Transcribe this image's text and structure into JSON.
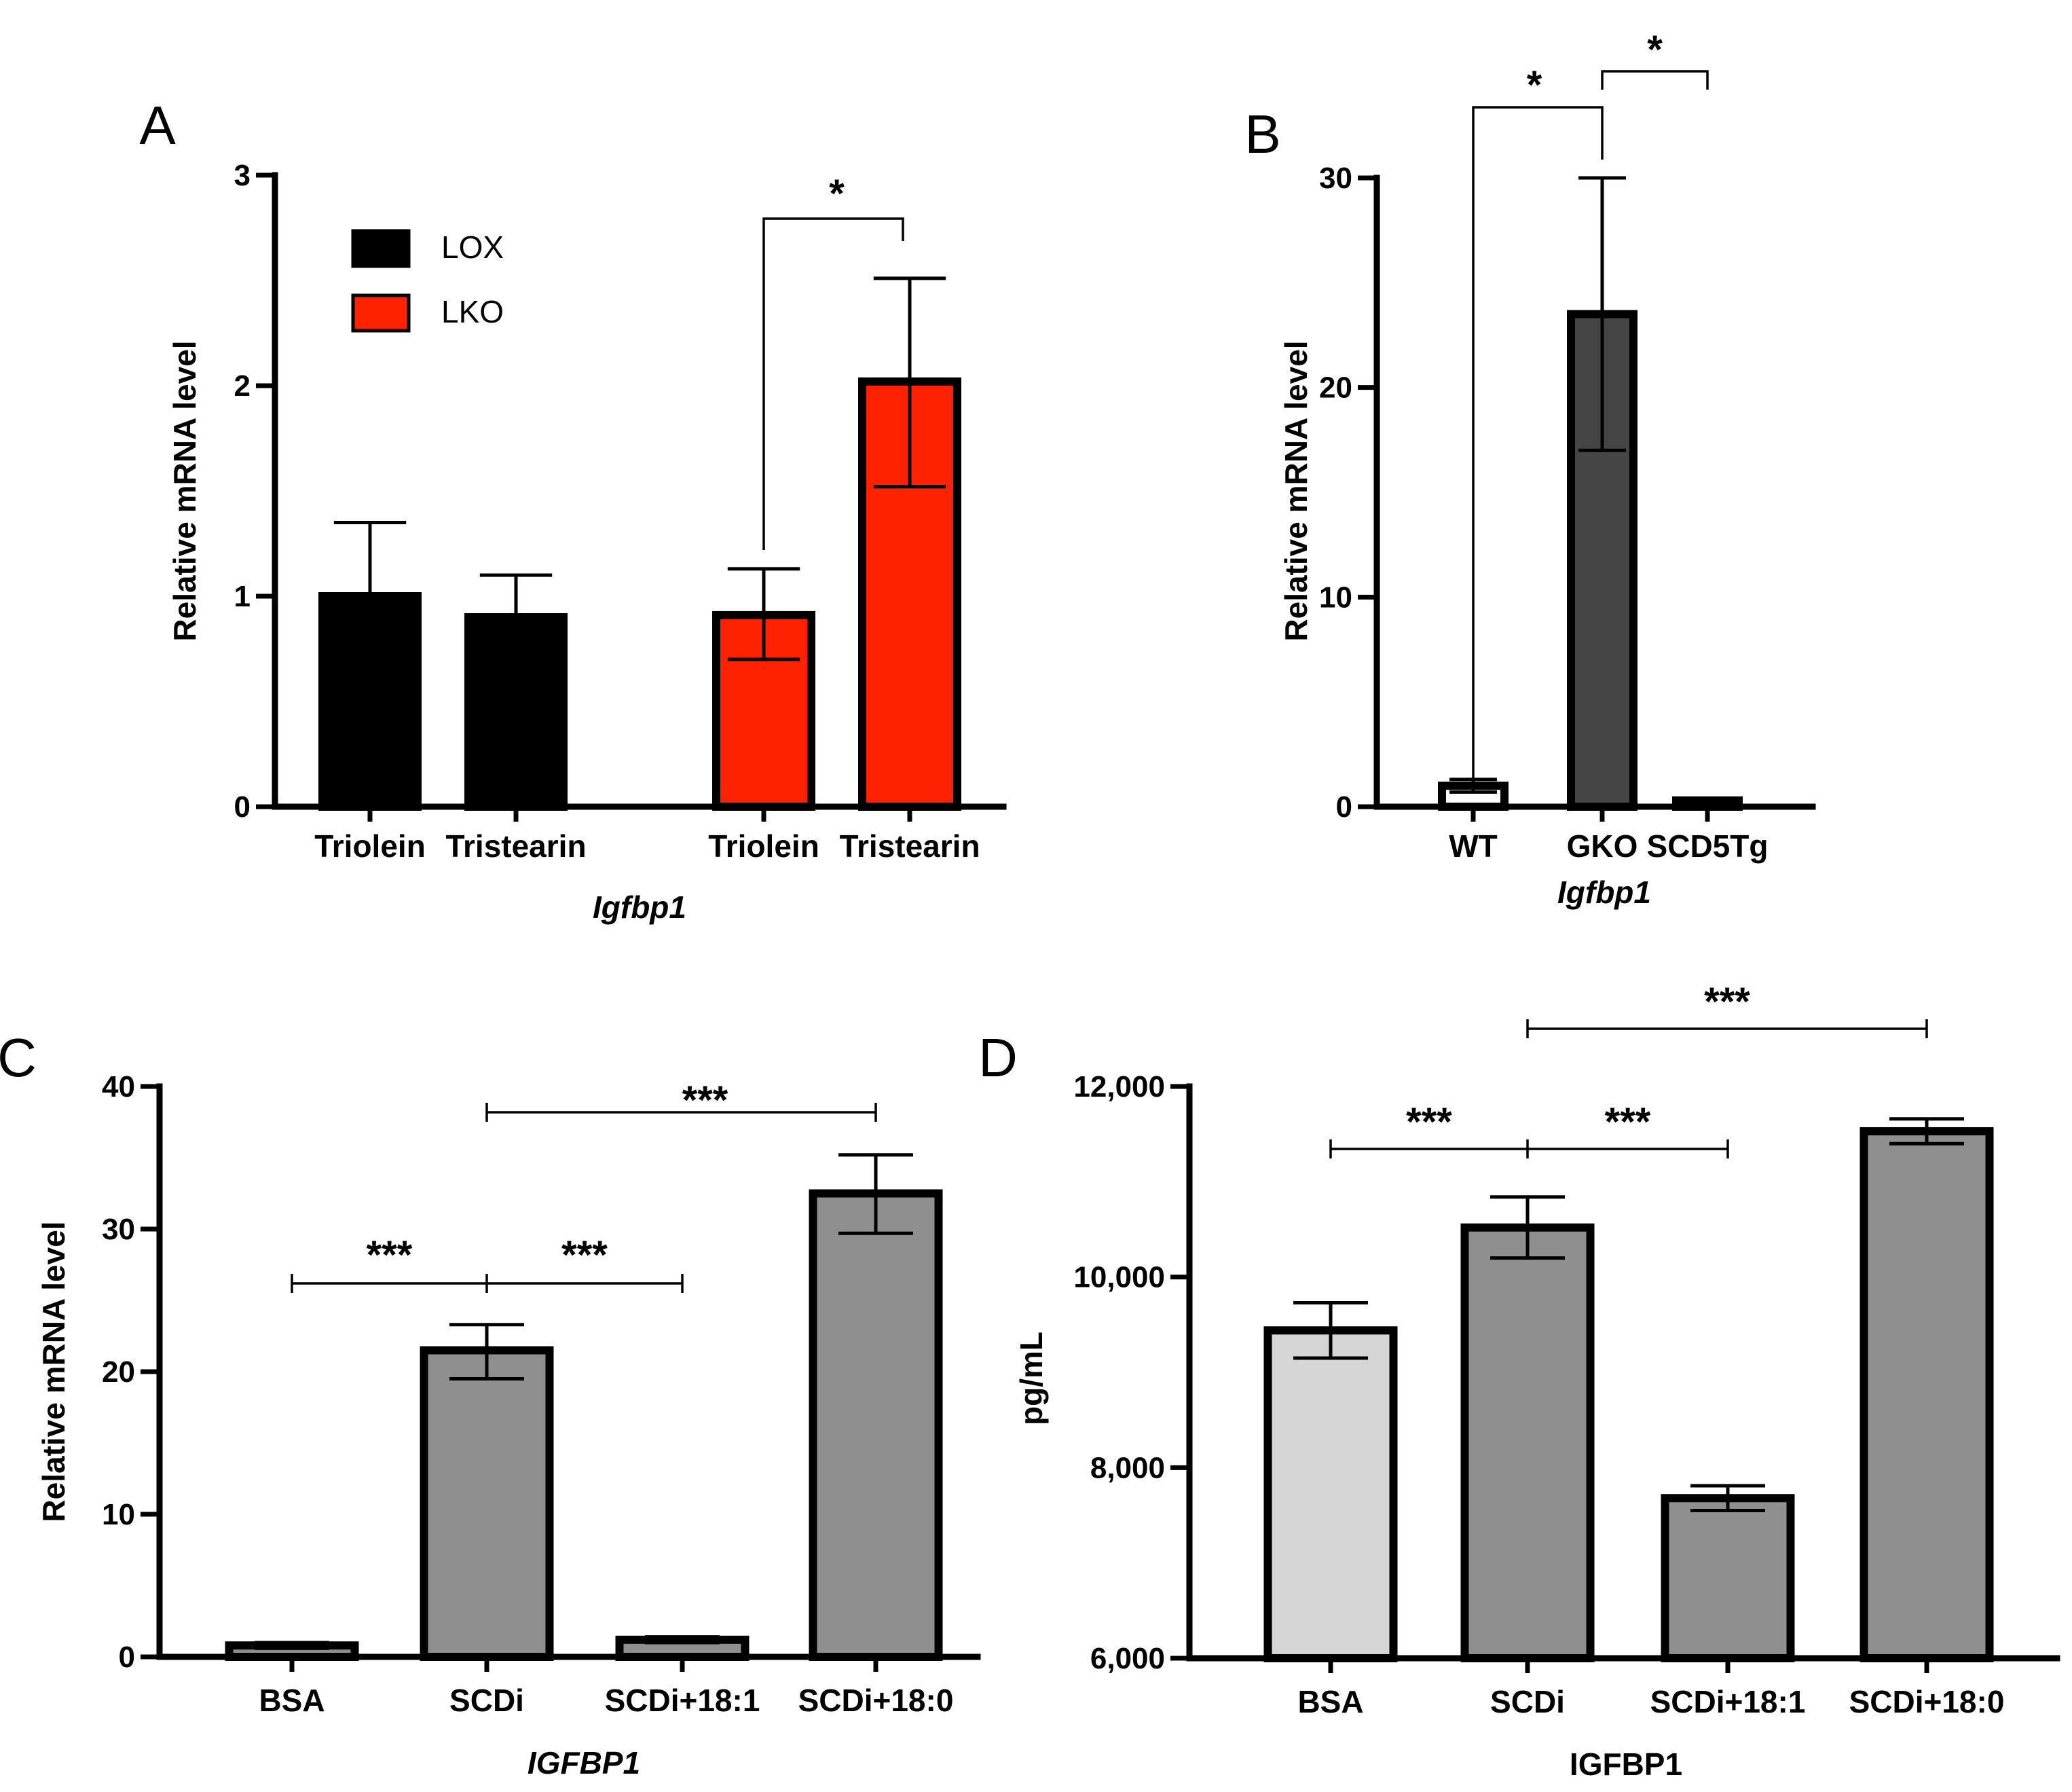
{
  "colors": {
    "lox": "#000000",
    "lko": "#ff2200",
    "wt": "#ffffff",
    "gko": "#454545",
    "scd5tg": "#d9d9d9",
    "grey_bar": "#8f8f8f",
    "bsa_light": "#d6d6d6",
    "axis": "#000000"
  },
  "chart_data": [
    {
      "panel": "A",
      "type": "bar",
      "ylabel": "Relative mRNA level",
      "xlabel": "Igfbp1",
      "ylim": [
        0,
        3
      ],
      "yticks": [
        "0",
        "1",
        "2",
        "3"
      ],
      "legend": {
        "placement": "top-left",
        "entries": [
          {
            "label": "LOX",
            "color_key": "lox"
          },
          {
            "label": "LKO",
            "color_key": "lko"
          }
        ]
      },
      "bars": [
        {
          "label": "Triolein",
          "group": "LOX",
          "value": 1.0,
          "err_low": 0.0,
          "err_high": 0.35,
          "color_key": "lox"
        },
        {
          "label": "Tristearin",
          "group": "LOX",
          "value": 0.9,
          "err_low": 0.0,
          "err_high": 0.2,
          "color_key": "lox"
        },
        {
          "label": "Triolein",
          "group": "LKO",
          "value": 0.91,
          "err_low": 0.21,
          "err_high": 0.22,
          "color_key": "lko"
        },
        {
          "label": "Tristearin",
          "group": "LKO",
          "value": 2.02,
          "err_low": 0.5,
          "err_high": 0.49,
          "color_key": "lko"
        }
      ],
      "significance": [
        {
          "from": 2,
          "to": 3,
          "label": "*"
        }
      ]
    },
    {
      "panel": "B",
      "type": "bar",
      "ylabel": "Relative mRNA level",
      "xlabel": "Igfbp1",
      "ylim": [
        0,
        30
      ],
      "yticks": [
        "0",
        "10",
        "20",
        "30"
      ],
      "bars": [
        {
          "label": "WT",
          "value": 1.0,
          "err_low": 0.3,
          "err_high": 0.3,
          "color_key": "wt"
        },
        {
          "label": "GKO",
          "value": 23.5,
          "err_low": 6.5,
          "err_high": 6.5,
          "color_key": "gko"
        },
        {
          "label": "SCD5Tg",
          "value": 0.3,
          "err_low": 0.1,
          "err_high": 0.1,
          "color_key": "scd5tg"
        }
      ],
      "significance": [
        {
          "from": 0,
          "to": 1,
          "label": "*"
        },
        {
          "from": 1,
          "to": 2,
          "label": "*"
        }
      ]
    },
    {
      "panel": "C",
      "type": "bar",
      "ylabel": "Relative mRNA level",
      "xlabel": "IGFBP1",
      "ylim": [
        0,
        40
      ],
      "yticks": [
        "0",
        "10",
        "20",
        "30",
        "40"
      ],
      "bars": [
        {
          "label": "BSA",
          "value": 0.8,
          "err_low": 0.2,
          "err_high": 0.2,
          "color_key": "grey_bar"
        },
        {
          "label": "SCDi",
          "value": 21.5,
          "err_low": 2.0,
          "err_high": 1.8,
          "color_key": "grey_bar"
        },
        {
          "label": "SCDi+18:1",
          "value": 1.2,
          "err_low": 0.2,
          "err_high": 0.2,
          "color_key": "grey_bar"
        },
        {
          "label": "SCDi+18:0",
          "value": 32.5,
          "err_low": 2.8,
          "err_high": 2.7,
          "color_key": "grey_bar"
        }
      ],
      "significance": [
        {
          "from": 0,
          "to": 1,
          "label": "***"
        },
        {
          "from": 1,
          "to": 2,
          "label": "***"
        },
        {
          "from": 1,
          "to": 3,
          "label": "***"
        }
      ]
    },
    {
      "panel": "D",
      "type": "bar",
      "ylabel": "pg/mL",
      "xlabel": "IGFBP1",
      "ylim": [
        6000,
        12000
      ],
      "yticks": [
        "6,000",
        "8,000",
        "10,000",
        "12,000"
      ],
      "bars": [
        {
          "label": "BSA",
          "value": 9440,
          "err_low": 290,
          "err_high": 290,
          "color_key": "bsa_light"
        },
        {
          "label": "SCDi",
          "value": 10520,
          "err_low": 320,
          "err_high": 320,
          "color_key": "grey_bar"
        },
        {
          "label": "SCDi+18:1",
          "value": 7680,
          "err_low": 130,
          "err_high": 130,
          "color_key": "grey_bar"
        },
        {
          "label": "SCDi+18:0",
          "value": 11530,
          "err_low": 130,
          "err_high": 130,
          "color_key": "grey_bar"
        }
      ],
      "significance": [
        {
          "from": 0,
          "to": 1,
          "label": "***"
        },
        {
          "from": 1,
          "to": 2,
          "label": "***"
        },
        {
          "from": 1,
          "to": 3,
          "label": "***"
        }
      ]
    }
  ]
}
